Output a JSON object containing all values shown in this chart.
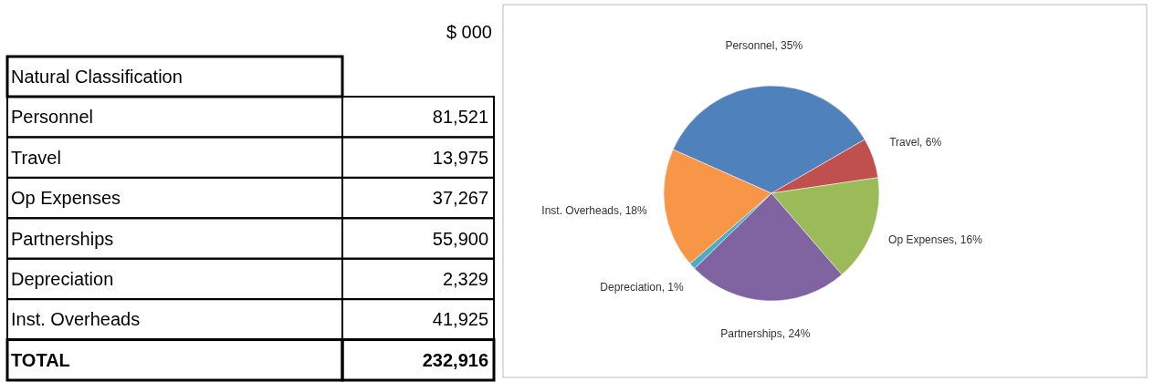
{
  "chart_data": [
    {
      "type": "other",
      "title": "Natural Classification",
      "categories": [
        "Personnel",
        "Travel",
        "Op Expenses",
        "Partnerships",
        "Depreciation",
        "Inst. Overheads"
      ],
      "values": [
        81521,
        13975,
        37267,
        55900,
        2329,
        41925
      ],
      "value_labels": [
        "81,521",
        "13,975",
        "37,267",
        "55,900",
        "2,329",
        "41,925"
      ],
      "annotations": [
        "$ 000",
        "TOTAL"
      ],
      "totals": [
        "232,916"
      ]
    },
    {
      "type": "pie",
      "categories": [
        "Personnel",
        "Travel",
        "Op Expenses",
        "Partnerships",
        "Depreciation",
        "Inst. Overheads"
      ],
      "values": [
        35,
        6,
        16,
        24,
        1,
        18
      ],
      "colors": [
        "#4f81bd",
        "#c0504d",
        "#9bbb59",
        "#8064a2",
        "#4bacc6",
        "#f79646"
      ],
      "value_labels": [
        "35%",
        "6%",
        "16%",
        "24%",
        "1%",
        "18%"
      ]
    }
  ]
}
